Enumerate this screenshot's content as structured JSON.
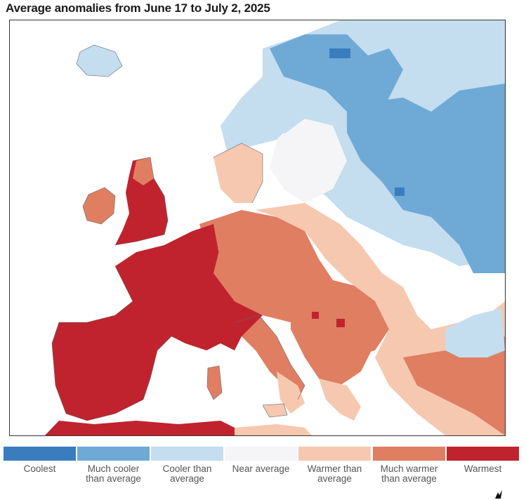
{
  "title": "Average anomalies from June 17 to July 2, 2025",
  "map": {
    "type": "temperature-anomaly-choropleth",
    "region": "Europe",
    "categories": [
      {
        "key": "coolest",
        "color": "#3a7dbf"
      },
      {
        "key": "much_cooler",
        "color": "#6fa9d6"
      },
      {
        "key": "cooler",
        "color": "#c4ddef"
      },
      {
        "key": "near",
        "color": "#f5f5f7"
      },
      {
        "key": "warmer",
        "color": "#f6c8b0"
      },
      {
        "key": "much_warmer",
        "color": "#e07e62"
      },
      {
        "key": "warmest",
        "color": "#c0232e"
      }
    ]
  },
  "legend": [
    {
      "label": "Coolest",
      "color": "#3a7dbf"
    },
    {
      "label": "Much cooler than average",
      "color": "#6fa9d6"
    },
    {
      "label": "Cooler than average",
      "color": "#c4ddef"
    },
    {
      "label": "Near average",
      "color": "#f5f5f7"
    },
    {
      "label": "Warmer than average",
      "color": "#f6c8b0"
    },
    {
      "label": "Much warmer than average",
      "color": "#e07e62"
    },
    {
      "label": "Warmest",
      "color": "#c0232e"
    }
  ],
  "icons": {
    "corner": "logo-mark-icon"
  }
}
